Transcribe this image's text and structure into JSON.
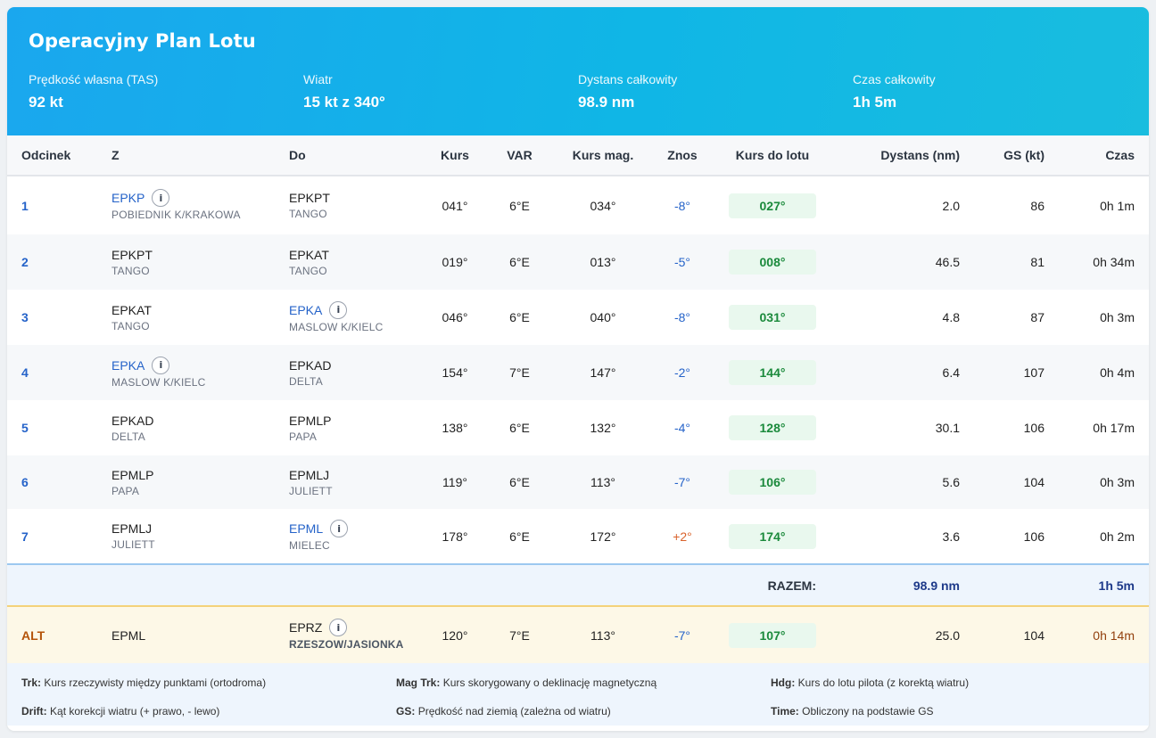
{
  "header": {
    "title": "Operacyjny Plan Lotu",
    "stats": [
      {
        "label": "Prędkość własna (TAS)",
        "value": "92 kt"
      },
      {
        "label": "Wiatr",
        "value": "15 kt z 340°"
      },
      {
        "label": "Dystans całkowity",
        "value": "98.9 nm"
      },
      {
        "label": "Czas całkowity",
        "value": "1h 5m"
      }
    ]
  },
  "columns": [
    "Odcinek",
    "Z",
    "Do",
    "Kurs",
    "VAR",
    "Kurs mag.",
    "Znos",
    "Kurs do lotu",
    "Dystans (nm)",
    "GS (kt)",
    "Czas"
  ],
  "legs": [
    {
      "num": "1",
      "from": {
        "code": "EPKP",
        "name": "POBIEDNIK K/KRAKOWA"
      },
      "to": {
        "code": "EPKPT",
        "name": "TANGO"
      },
      "trk": "041°",
      "var": "6°E",
      "mag": "034°",
      "drift": "-8°",
      "hdg": "027°",
      "dist": "2.0",
      "gs": "86",
      "time": "0h 1m"
    },
    {
      "num": "2",
      "from": {
        "code": "EPKPT",
        "name": "TANGO"
      },
      "to": {
        "code": "EPKAT",
        "name": "TANGO"
      },
      "trk": "019°",
      "var": "6°E",
      "mag": "013°",
      "drift": "-5°",
      "hdg": "008°",
      "dist": "46.5",
      "gs": "81",
      "time": "0h 34m"
    },
    {
      "num": "3",
      "from": {
        "code": "EPKAT",
        "name": "TANGO"
      },
      "to": {
        "code": "EPKA",
        "name": "MASLOW K/KIELC"
      },
      "trk": "046°",
      "var": "6°E",
      "mag": "040°",
      "drift": "-8°",
      "hdg": "031°",
      "dist": "4.8",
      "gs": "87",
      "time": "0h 3m"
    },
    {
      "num": "4",
      "from": {
        "code": "EPKA",
        "name": "MASLOW K/KIELC"
      },
      "to": {
        "code": "EPKAD",
        "name": "DELTA"
      },
      "trk": "154°",
      "var": "7°E",
      "mag": "147°",
      "drift": "-2°",
      "hdg": "144°",
      "dist": "6.4",
      "gs": "107",
      "time": "0h 4m"
    },
    {
      "num": "5",
      "from": {
        "code": "EPKAD",
        "name": "DELTA"
      },
      "to": {
        "code": "EPMLP",
        "name": "PAPA"
      },
      "trk": "138°",
      "var": "6°E",
      "mag": "132°",
      "drift": "-4°",
      "hdg": "128°",
      "dist": "30.1",
      "gs": "106",
      "time": "0h 17m"
    },
    {
      "num": "6",
      "from": {
        "code": "EPMLP",
        "name": "PAPA"
      },
      "to": {
        "code": "EPMLJ",
        "name": "JULIETT"
      },
      "trk": "119°",
      "var": "6°E",
      "mag": "113°",
      "drift": "-7°",
      "hdg": "106°",
      "dist": "5.6",
      "gs": "104",
      "time": "0h 3m"
    },
    {
      "num": "7",
      "from": {
        "code": "EPMLJ",
        "name": "JULIETT"
      },
      "to": {
        "code": "EPML",
        "name": "MIELEC"
      },
      "trk": "178°",
      "var": "6°E",
      "mag": "172°",
      "drift": "+2°",
      "hdg": "174°",
      "dist": "3.6",
      "gs": "106",
      "time": "0h 2m"
    }
  ],
  "total": {
    "label": "RAZEM:",
    "dist": "98.9 nm",
    "time": "1h 5m"
  },
  "alternate": {
    "label": "ALT",
    "from": "EPML",
    "to": {
      "code": "EPRZ",
      "name": "RZESZOW/JASIONKA"
    },
    "trk": "120°",
    "var": "7°E",
    "mag": "113°",
    "drift": "-7°",
    "hdg": "107°",
    "dist": "25.0",
    "gs": "104",
    "time": "0h 14m"
  },
  "legend": [
    {
      "key": "Trk:",
      "text": "Kurs rzeczywisty między punktami (ortodroma)"
    },
    {
      "key": "Mag Trk:",
      "text": "Kurs skorygowany o deklinację magnetyczną"
    },
    {
      "key": "Hdg:",
      "text": "Kurs do lotu pilota (z korektą wiatru)"
    },
    {
      "key": "Drift:",
      "text": "Kąt korekcji wiatru (+ prawo, - lewo)"
    },
    {
      "key": "GS:",
      "text": "Prędkość nad ziemią (zależna od wiatru)"
    },
    {
      "key": "Time:",
      "text": "Obliczony na podstawie GS"
    }
  ],
  "info_icon": "info-icon",
  "colors": {
    "header_start": "#1aa7ee",
    "header_end": "#19bddf",
    "link": "#2563c9",
    "heading_green": "#1b8a3c",
    "alt_orange": "#b45309"
  }
}
